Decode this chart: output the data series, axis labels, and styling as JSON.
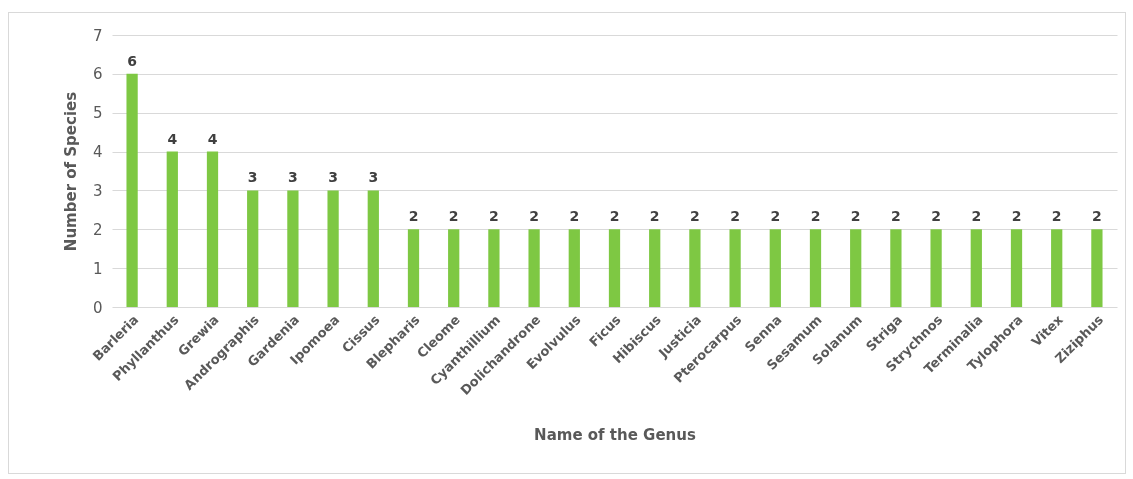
{
  "chart_data": {
    "type": "bar",
    "xlabel": "Name of the Genus",
    "ylabel": "Number of Species",
    "categories": [
      "Barleria",
      "Phyllanthus",
      "Grewia",
      "Andrographis",
      "Gardenia",
      "Ipomoea",
      "Cissus",
      "Blepharis",
      "Cleome",
      "Cyanthillium",
      "Dolichandrone",
      "Evolvulus",
      "Ficus",
      "Hibiscus",
      "Justicia",
      "Pterocarpus",
      "Senna",
      "Sesamum",
      "Solanum",
      "Striga",
      "Strychnos",
      "Terminalia",
      "Tylophora",
      "Vitex",
      "Ziziphus"
    ],
    "values": [
      6,
      4,
      4,
      3,
      3,
      3,
      3,
      2,
      2,
      2,
      2,
      2,
      2,
      2,
      2,
      2,
      2,
      2,
      2,
      2,
      2,
      2,
      2,
      2,
      2
    ],
    "color": "#7ec843",
    "ylim": [
      0,
      7
    ],
    "yticks": [
      0,
      1,
      2,
      3,
      4,
      5,
      6,
      7
    ],
    "grid": "y",
    "data_labels": true
  }
}
